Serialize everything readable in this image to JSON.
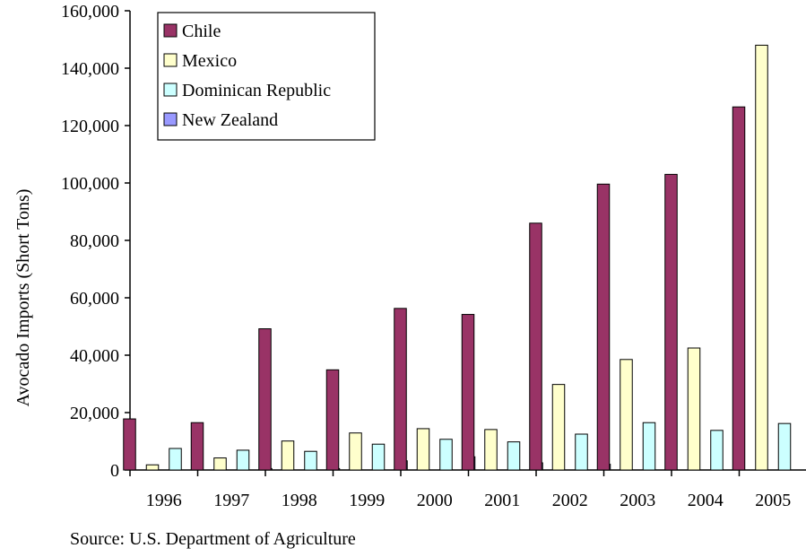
{
  "chart_data": {
    "type": "bar",
    "title": "",
    "xlabel": "",
    "ylabel": "Avocado Imports (Short Tons)",
    "ylim": [
      0,
      160000
    ],
    "yticks": [
      0,
      20000,
      40000,
      60000,
      80000,
      100000,
      120000,
      140000,
      160000
    ],
    "ytick_labels": [
      "0",
      "20,000",
      "40,000",
      "60,000",
      "80,000",
      "100,000",
      "120,000",
      "140,000",
      "160,000"
    ],
    "grid": false,
    "legend_position": "top-left",
    "categories": [
      "1996",
      "1997",
      "1998",
      "1999",
      "2000",
      "2001",
      "2002",
      "2003",
      "2004",
      "2005"
    ],
    "series": [
      {
        "name": "Chile",
        "color": "#993366",
        "values": [
          17800,
          16500,
          49200,
          34900,
          56300,
          54200,
          86000,
          99600,
          103000,
          126500
        ]
      },
      {
        "name": "Mexico",
        "color": "#FFFFCC",
        "values": [
          1800,
          4200,
          10100,
          12900,
          14400,
          14100,
          29800,
          38500,
          42500,
          148000
        ]
      },
      {
        "name": "Dominican Republic",
        "color": "#CCFFFF",
        "values": [
          7500,
          6900,
          6500,
          9000,
          10700,
          9800,
          12500,
          16500,
          13800,
          16200
        ]
      },
      {
        "name": "New Zealand",
        "color": "#9999FF",
        "values": [
          0,
          500,
          500,
          3200,
          4600,
          2500,
          2000,
          0,
          0,
          0
        ]
      }
    ]
  },
  "source_note": "Source: U.S. Department of Agriculture"
}
